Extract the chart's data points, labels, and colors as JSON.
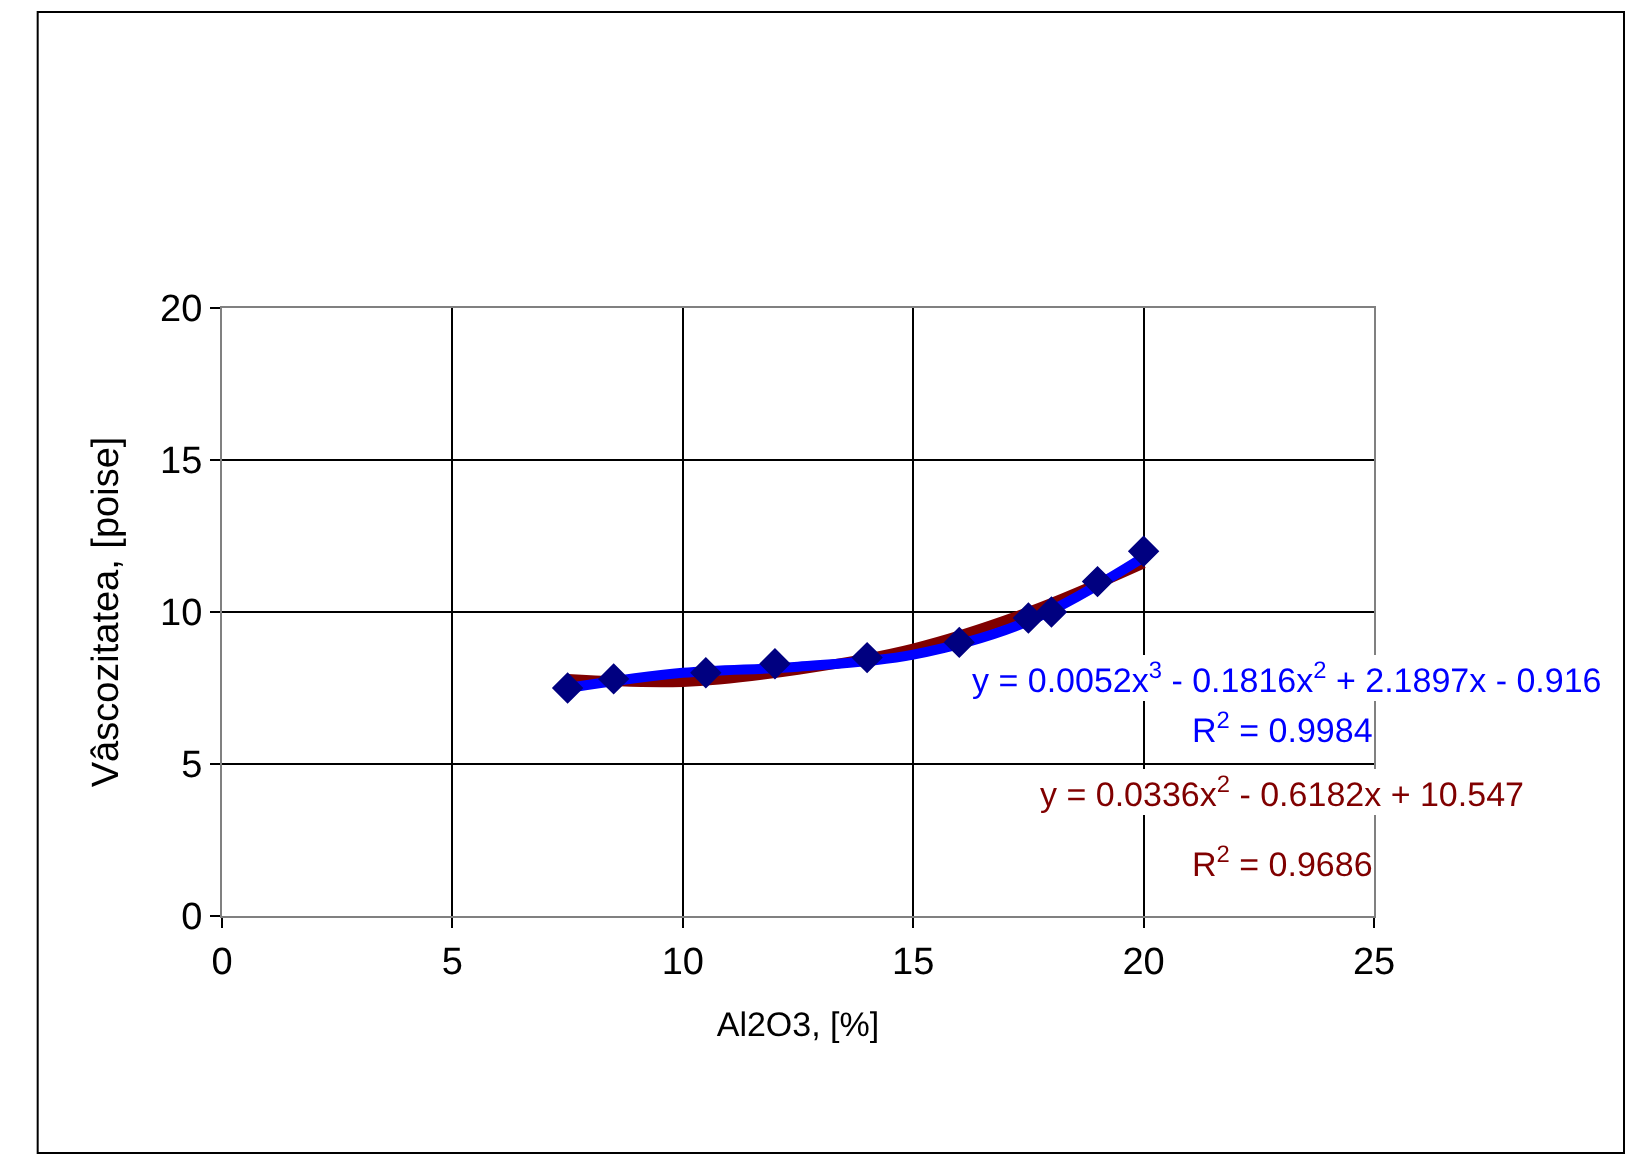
{
  "chart_data": {
    "type": "scatter",
    "xlabel": "Al2O3, [%]",
    "ylabel": "Vâscozitatea, [poise]",
    "xlim": [
      0,
      25
    ],
    "xticks": [
      0,
      5,
      10,
      15,
      20,
      25
    ],
    "ylim": [
      0,
      20
    ],
    "yticks": [
      0,
      5,
      10,
      15,
      20
    ],
    "grid": true,
    "marker": "diamond",
    "series": [
      {
        "type": "line",
        "color": "#0000ff",
        "x": [
          7.5,
          10,
          12.5,
          15,
          17.5,
          20
        ],
        "values": [
          7.5,
          8.0,
          8.2,
          8.6,
          9.7,
          11.8
        ],
        "marker": "none"
      },
      {
        "type": "line",
        "color": "#800000",
        "x": [
          7.5,
          10,
          12.5,
          15,
          17.5,
          20
        ],
        "values": [
          7.8,
          7.7,
          8.1,
          8.8,
          10.0,
          11.6
        ],
        "marker": "none"
      },
      {
        "color": "#000080",
        "x": [
          7.5,
          8.5,
          10.5,
          12,
          14,
          16,
          17.5,
          18,
          19,
          20
        ],
        "values": [
          7.5,
          7.8,
          8.0,
          8.3,
          8.5,
          9.0,
          9.8,
          10.0,
          11.0,
          12.0
        ]
      }
    ],
    "annotations": [
      "y = 0.0052x$^{3}$ - 0.1816x$^{2}$ + 2.1897x - 0.916",
      "R$^{2}$ = 0.9984",
      "y = 0.0336x$^{2}$ - 0.6182x + 10.547",
      "R$^{2}$ = 0.9686"
    ]
  }
}
